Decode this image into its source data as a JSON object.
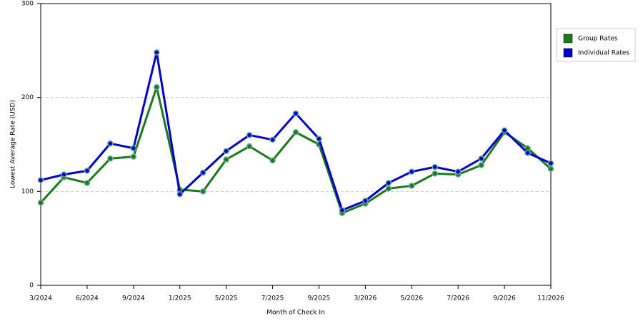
{
  "chart_data": {
    "type": "line",
    "x_label": "Month of Check In",
    "y_label": "Lowest Average Rate (USD)",
    "categories": [
      "3/2024",
      null,
      "6/2024",
      null,
      "9/2024",
      null,
      "1/2025",
      null,
      "5/2025",
      null,
      "7/2025",
      null,
      "9/2025",
      null,
      "3/2026",
      null,
      "5/2026",
      null,
      "7/2026",
      null,
      "9/2026",
      null,
      "11/2026"
    ],
    "series": [
      {
        "name": "Group Rates",
        "color": "#1a7a1a",
        "values": [
          88,
          115,
          109,
          135,
          137,
          211,
          102,
          100,
          134,
          148,
          133,
          163,
          150,
          77,
          87,
          103,
          106,
          119,
          118,
          128,
          163,
          146,
          124
        ]
      },
      {
        "name": "Individual Rates",
        "color": "#0000cc",
        "values": [
          112,
          118,
          122,
          151,
          146,
          248,
          97,
          120,
          143,
          160,
          155,
          183,
          156,
          80,
          90,
          109,
          121,
          126,
          121,
          135,
          165,
          141,
          130
        ]
      }
    ],
    "ylim": [
      0,
      300
    ],
    "yticks": [
      0,
      100,
      200,
      300
    ],
    "grid": true,
    "legend": "right"
  }
}
